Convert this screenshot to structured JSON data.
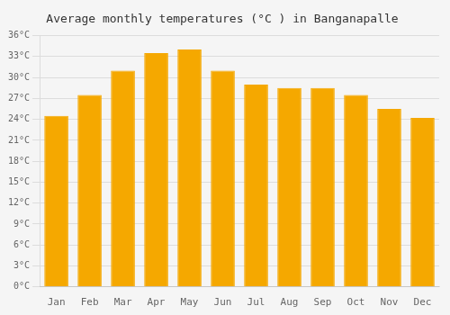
{
  "chart_data": {
    "type": "bar",
    "title": "Average monthly temperatures (°C ) in Banganapalle",
    "categories": [
      "Jan",
      "Feb",
      "Mar",
      "Apr",
      "May",
      "Jun",
      "Jul",
      "Aug",
      "Sep",
      "Oct",
      "Nov",
      "Dec"
    ],
    "values": [
      24.5,
      27.5,
      31.0,
      33.5,
      34.0,
      31.0,
      29.0,
      28.5,
      28.5,
      27.5,
      25.5,
      24.2
    ],
    "color": "#F5A800",
    "ylim": [
      0,
      36
    ],
    "yticks": [
      {
        "value": 0,
        "label": "0°C"
      },
      {
        "value": 3,
        "label": "3°C"
      },
      {
        "value": 6,
        "label": "6°C"
      },
      {
        "value": 9,
        "label": "9°C"
      },
      {
        "value": 12,
        "label": "12°C"
      },
      {
        "value": 15,
        "label": "15°C"
      },
      {
        "value": 18,
        "label": "18°C"
      },
      {
        "value": 21,
        "label": "21°C"
      },
      {
        "value": 24,
        "label": "24°C"
      },
      {
        "value": 27,
        "label": "27°C"
      },
      {
        "value": 30,
        "label": "30°C"
      },
      {
        "value": 33,
        "label": "33°C"
      },
      {
        "value": 36,
        "label": "36°C"
      }
    ],
    "grid": true
  }
}
